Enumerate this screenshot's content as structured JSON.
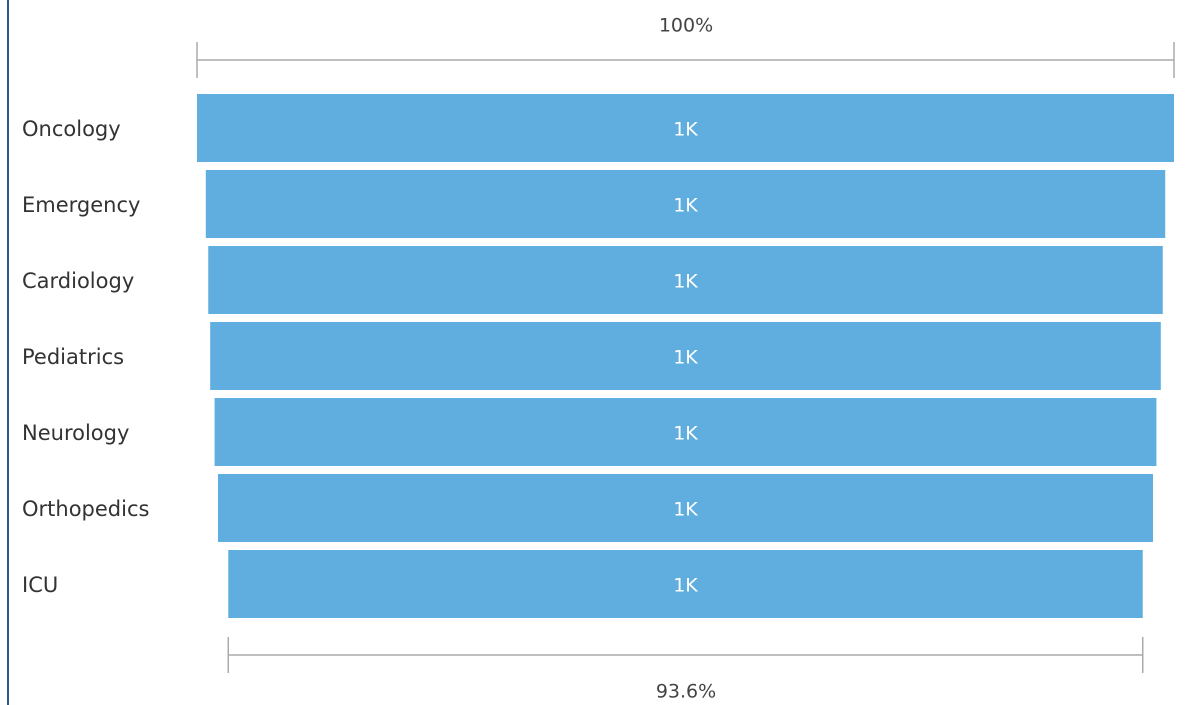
{
  "chart_data": {
    "type": "funnel",
    "categories": [
      "Oncology",
      "Emergency",
      "Cardiology",
      "Pediatrics",
      "Neurology",
      "Orthopedics",
      "ICU"
    ],
    "values": [
      1000,
      982,
      977,
      973,
      964,
      957,
      936
    ],
    "value_labels": [
      "1K",
      "1K",
      "1K",
      "1K",
      "1K",
      "1K",
      "1K"
    ],
    "color": "#60aee0",
    "top_label": "100%",
    "bottom_label": "93.6%"
  }
}
